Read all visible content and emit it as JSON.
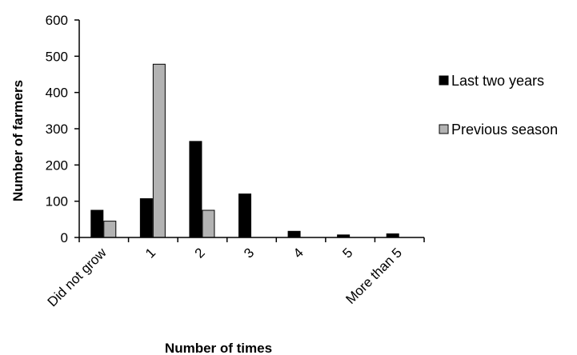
{
  "chart_data": {
    "type": "bar",
    "title": "",
    "xlabel": "Number  of times",
    "ylabel": "Number of farmers",
    "ylim": [
      0,
      600
    ],
    "yticks": [
      0,
      100,
      200,
      300,
      400,
      500,
      600
    ],
    "categories": [
      "Did not grow",
      "1",
      "2",
      "3",
      "4",
      "5",
      "More than 5"
    ],
    "series": [
      {
        "name": "Last two years",
        "color": "#000000",
        "values": [
          75,
          107,
          265,
          120,
          17,
          7,
          10
        ]
      },
      {
        "name": "Previous season",
        "color": "#b3b3b3",
        "values": [
          45,
          478,
          75,
          0,
          0,
          0,
          0
        ]
      }
    ],
    "grid": false,
    "legend_position": "right"
  }
}
